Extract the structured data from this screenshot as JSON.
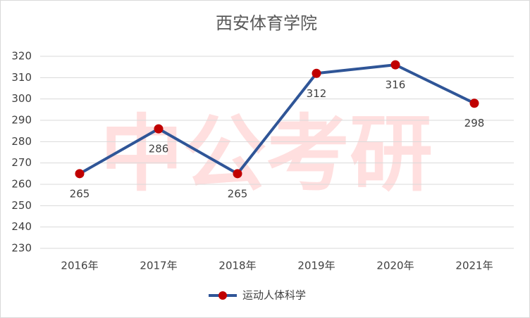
{
  "chart_data": {
    "type": "line",
    "title": "西安体育学院",
    "watermark": "中公考研",
    "categories": [
      "2016年",
      "2017年",
      "2018年",
      "2019年",
      "2020年",
      "2021年"
    ],
    "series": [
      {
        "name": "运动人体科学",
        "color": "#2f5597",
        "marker_color": "#c00000",
        "values": [
          265,
          286,
          265,
          312,
          316,
          298
        ]
      }
    ],
    "ylim": [
      230,
      320
    ],
    "yticks": [
      230,
      240,
      250,
      260,
      270,
      280,
      290,
      300,
      310,
      320
    ],
    "grid": true,
    "legend": "bottom"
  }
}
